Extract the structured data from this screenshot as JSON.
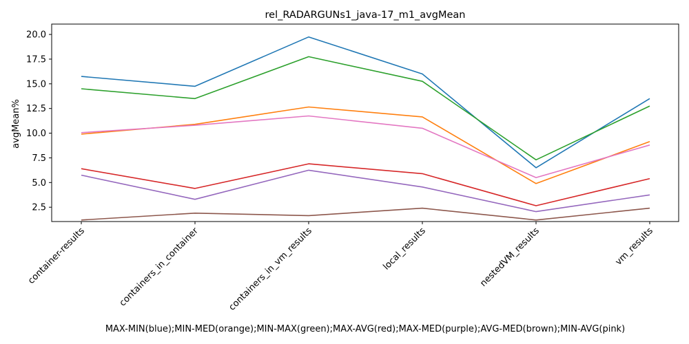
{
  "chart_data": {
    "type": "line",
    "title": "rel_RADARGUNs1_java-17_m1_avgMean",
    "xlabel": "MAX-MIN(blue);MIN-MED(orange);MIN-MAX(green);MAX-AVG(red);MAX-MED(purple);AVG-MED(brown);MIN-AVG(pink)",
    "ylabel": "avgMean%",
    "categories": [
      "container-results",
      "containers_in_container",
      "containers_in_vm_results",
      "local_results",
      "nestedVM_results",
      "vm_results"
    ],
    "ylim": [
      1.05,
      21.05
    ],
    "yticks": [
      "2.5",
      "5.0",
      "7.5",
      "10.0",
      "12.5",
      "15.0",
      "17.5",
      "20.0"
    ],
    "grid": false,
    "series": [
      {
        "color": "#1f77b4",
        "values": [
          15.75,
          14.75,
          19.75,
          16.0,
          6.5,
          13.5
        ]
      },
      {
        "color": "#ff7f0e",
        "values": [
          9.9,
          10.9,
          12.65,
          11.65,
          4.9,
          9.15
        ]
      },
      {
        "color": "#2ca02c",
        "values": [
          14.5,
          13.5,
          17.75,
          15.25,
          7.3,
          12.75
        ]
      },
      {
        "color": "#d62728",
        "values": [
          6.4,
          4.4,
          6.9,
          5.9,
          2.65,
          5.4
        ]
      },
      {
        "color": "#9467bd",
        "values": [
          5.75,
          3.3,
          6.25,
          4.55,
          2.05,
          3.75
        ]
      },
      {
        "color": "#8c564b",
        "values": [
          1.2,
          1.9,
          1.65,
          2.4,
          1.2,
          2.4
        ]
      },
      {
        "color": "#e377c2",
        "values": [
          10.05,
          10.8,
          11.75,
          10.5,
          5.5,
          8.8
        ]
      }
    ]
  }
}
